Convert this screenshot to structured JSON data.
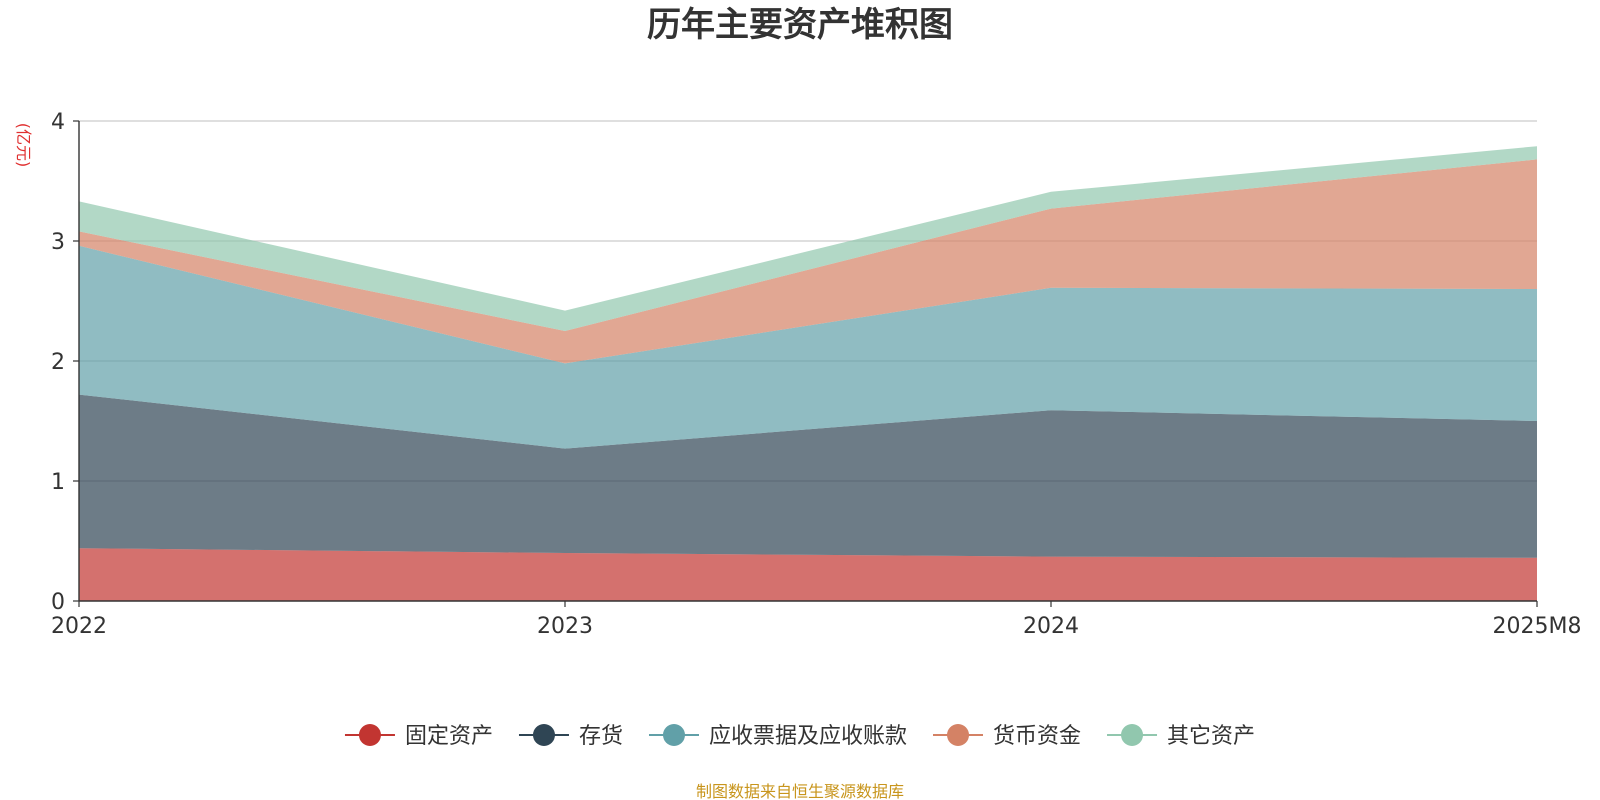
{
  "chart_data": {
    "type": "area",
    "stacked": true,
    "title": "历年主要资产堆积图",
    "ylabel": "(亿元)",
    "xlabel": "",
    "ylim": [
      0,
      4
    ],
    "yticks": [
      "0",
      "1",
      "2",
      "3",
      "4"
    ],
    "categories": [
      "2022",
      "2023",
      "2024",
      "2025M8"
    ],
    "grid": true,
    "legend_position": "bottom",
    "series": [
      {
        "name": "固定资产",
        "color": "#c23531",
        "values": [
          0.44,
          0.4,
          0.37,
          0.36
        ]
      },
      {
        "name": "存货",
        "color": "#2f4554",
        "values": [
          1.28,
          0.87,
          1.22,
          1.14
        ]
      },
      {
        "name": "应收票据及应收账款",
        "color": "#61a0a8",
        "values": [
          1.24,
          0.71,
          1.02,
          1.1
        ]
      },
      {
        "name": "货币资金",
        "color": "#d48265",
        "values": [
          0.12,
          0.27,
          0.66,
          1.08
        ]
      },
      {
        "name": "其它资产",
        "color": "#91c7ae",
        "values": [
          0.25,
          0.17,
          0.14,
          0.11
        ]
      }
    ],
    "source": "制图数据来自恒生聚源数据库"
  }
}
